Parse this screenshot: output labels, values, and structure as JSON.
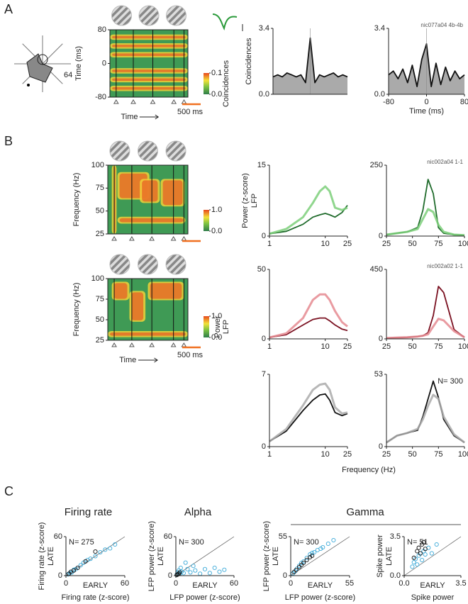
{
  "figure": {
    "panel_labels": [
      "A",
      "B",
      "C"
    ],
    "group_title": "Gamma",
    "freq_label": "Frequency (Hz)"
  },
  "chart_data": [
    {
      "type": "polar",
      "annotation": "64"
    },
    {
      "type": "heatmap",
      "ylabel": "Time (ms)",
      "ylim": [
        -80,
        80
      ],
      "yticks": [
        80,
        0,
        -80
      ],
      "xlabel": "Time",
      "clim": [
        0,
        0.1
      ],
      "cticks": [
        0.1,
        {
          "value": 0,
          "label": "0.0"
        }
      ],
      "colorbar_label": "Coincidences",
      "scale_bar": "500 ms"
    },
    {
      "type": "line",
      "ylabel": "Coincidences",
      "ylim": [
        0,
        3.4
      ],
      "yticks": [
        {
          "value": 0,
          "label": "0.0"
        },
        3.4
      ],
      "xlim": [
        -80,
        80
      ],
      "fill": "#aaaaaa",
      "x": [
        -80,
        -70,
        -60,
        -50,
        -40,
        -30,
        -20,
        -10,
        0,
        10,
        20,
        30,
        40,
        50,
        60,
        70,
        80
      ],
      "series": [
        {
          "color": "#111111",
          "values": [
            0.9,
            1,
            0.9,
            1.1,
            1,
            0.9,
            1,
            0.6,
            2.9,
            0.6,
            1,
            0.9,
            1,
            1.1,
            0.9,
            1,
            0.9
          ]
        }
      ]
    },
    {
      "type": "line",
      "annotation": "nic077a04 4b-4b",
      "xlabel": "Time (ms)",
      "ylim": [
        0,
        3.4
      ],
      "yticks": [
        {
          "value": 0,
          "label": "0.0"
        },
        3.4
      ],
      "xlim": [
        -80,
        80
      ],
      "xticks": [
        -80,
        0,
        80
      ],
      "fill": "#aaaaaa",
      "x": [
        -80,
        -70,
        -60,
        -50,
        -40,
        -30,
        -20,
        -10,
        0,
        10,
        20,
        30,
        40,
        50,
        60,
        70,
        80
      ],
      "series": [
        {
          "color": "#111111",
          "values": [
            1,
            1.2,
            0.8,
            1.3,
            0.6,
            1.5,
            0.4,
            1.8,
            2.6,
            0.4,
            1.6,
            0.5,
            1.4,
            0.7,
            1.2,
            0.8,
            1
          ]
        }
      ]
    },
    {
      "type": "heatmap",
      "ylabel": "Frequency (Hz)",
      "ylim": [
        25,
        100
      ],
      "yticks": [
        100,
        75,
        50,
        25
      ],
      "clim": [
        0,
        1
      ],
      "cticks": [
        {
          "value": 1,
          "label": "1.0"
        },
        {
          "value": 0,
          "label": "0.0"
        }
      ]
    },
    {
      "type": "heatmap",
      "ylabel": "Frequency (Hz)",
      "ylim": [
        25,
        100
      ],
      "yticks": [
        100,
        75,
        50,
        25
      ],
      "xlabel": "Time",
      "clim": [
        0,
        1
      ],
      "cticks": [
        {
          "value": 1,
          "label": "1.0"
        },
        {
          "value": 0,
          "label": "0.0"
        }
      ],
      "colorbar_label": "Power",
      "colorbar_label2": "LFP",
      "scale_bar": "500 ms"
    },
    {
      "type": "line",
      "ylabel": "Power (z-score)",
      "ylabel2": "LFP",
      "ylim": [
        0,
        15
      ],
      "yticks": [
        0,
        15
      ],
      "xlog": true,
      "xlim": [
        1,
        25
      ],
      "xticks": [
        1,
        10,
        25
      ],
      "x": [
        1,
        2,
        4,
        6,
        8,
        10,
        12,
        15,
        20,
        25
      ],
      "series": [
        {
          "color": "#1f6b2b",
          "values": [
            0.5,
            1,
            2.5,
            4,
            4.5,
            4.8,
            4.5,
            4,
            5,
            6.5
          ]
        },
        {
          "color": "#7ccf7a",
          "values": [
            0.5,
            1.5,
            4,
            7,
            9.5,
            10.5,
            9.5,
            6,
            5.5,
            6
          ]
        }
      ]
    },
    {
      "type": "line",
      "annotation": "nic002a04 1-1",
      "ylim": [
        0,
        250
      ],
      "yticks": [
        0,
        250
      ],
      "xlim": [
        25,
        100
      ],
      "xticks": [
        25,
        50,
        75,
        100
      ],
      "x": [
        25,
        35,
        45,
        55,
        60,
        65,
        70,
        75,
        80,
        90,
        100
      ],
      "series": [
        {
          "color": "#1f6b2b",
          "values": [
            5,
            10,
            15,
            30,
            90,
            200,
            150,
            30,
            10,
            5,
            3
          ]
        },
        {
          "color": "#7ccf7a",
          "values": [
            5,
            10,
            15,
            25,
            60,
            95,
            85,
            40,
            15,
            5,
            3
          ]
        }
      ]
    },
    {
      "type": "line",
      "ylim": [
        0,
        50
      ],
      "yticks": [
        0,
        50
      ],
      "xlog": true,
      "xlim": [
        1,
        25
      ],
      "xticks": [
        1,
        10,
        25
      ],
      "x": [
        1,
        2,
        4,
        6,
        8,
        10,
        12,
        15,
        20,
        25
      ],
      "series": [
        {
          "color": "#7a1020",
          "values": [
            1,
            3,
            10,
            14,
            15,
            15,
            13,
            10,
            7,
            6
          ]
        },
        {
          "color": "#e58a90",
          "values": [
            1,
            4,
            15,
            28,
            32,
            32,
            28,
            20,
            12,
            9
          ]
        }
      ]
    },
    {
      "type": "line",
      "annotation": "nic002a02 1-1",
      "ylim": [
        0,
        450
      ],
      "yticks": [
        0,
        450
      ],
      "xlim": [
        25,
        100
      ],
      "xticks": [
        25,
        50,
        75,
        100
      ],
      "x": [
        25,
        35,
        45,
        55,
        60,
        65,
        70,
        75,
        80,
        90,
        100
      ],
      "series": [
        {
          "color": "#7a1020",
          "values": [
            5,
            8,
            10,
            15,
            20,
            40,
            150,
            340,
            300,
            60,
            10
          ]
        },
        {
          "color": "#e58a90",
          "values": [
            5,
            8,
            10,
            15,
            20,
            30,
            80,
            130,
            120,
            50,
            10
          ]
        }
      ]
    },
    {
      "type": "line",
      "ylim": [
        0,
        7
      ],
      "yticks": [
        0,
        7
      ],
      "xlog": true,
      "xlim": [
        1,
        25
      ],
      "xticks": [
        1,
        10,
        25
      ],
      "x": [
        1,
        2,
        4,
        6,
        8,
        10,
        12,
        15,
        20,
        25
      ],
      "series": [
        {
          "color": "#111111",
          "values": [
            0.5,
            1.5,
            3.5,
            4.5,
            5,
            5.1,
            4.5,
            3.3,
            3,
            3.2
          ]
        },
        {
          "color": "#aaaaaa",
          "values": [
            0.5,
            1.7,
            4,
            5.5,
            6,
            6.1,
            5.5,
            3.8,
            3.2,
            3.3
          ]
        }
      ]
    },
    {
      "type": "line",
      "annotation": "N= 300",
      "ylim": [
        0,
        53
      ],
      "yticks": [
        0,
        53
      ],
      "xlim": [
        25,
        100
      ],
      "xticks": [
        25,
        50,
        75,
        100
      ],
      "x": [
        25,
        35,
        45,
        55,
        60,
        65,
        70,
        75,
        80,
        90,
        100
      ],
      "series": [
        {
          "color": "#111111",
          "values": [
            3,
            8,
            10,
            12,
            22,
            35,
            48,
            36,
            20,
            8,
            3
          ]
        },
        {
          "color": "#aaaaaa",
          "values": [
            3,
            8,
            10,
            13,
            20,
            30,
            38,
            35,
            22,
            9,
            3
          ]
        }
      ]
    },
    {
      "type": "scatter",
      "title": "Firing rate",
      "annotation": "N= 275",
      "ylabel": "Firing rate (z-score)",
      "ylabel2": "LATE",
      "xlabel": "Firing rate (z-score)",
      "xlabel2": "EARLY",
      "xlim": [
        0,
        60
      ],
      "ylim": [
        0,
        60
      ],
      "xticks": [
        0,
        60
      ],
      "yticks": [
        0,
        60
      ],
      "series": [
        {
          "color": "#3aa9d8",
          "x": [
            2,
            4,
            6,
            8,
            10,
            12,
            15,
            18,
            22,
            25,
            30,
            35,
            40,
            45,
            50
          ],
          "values": [
            2,
            4,
            5,
            9,
            10,
            12,
            16,
            20,
            24,
            26,
            30,
            36,
            40,
            42,
            48
          ]
        },
        {
          "color": "#111111",
          "x": [
            3,
            5,
            8,
            12,
            20,
            30
          ],
          "values": [
            3,
            6,
            8,
            12,
            22,
            37
          ]
        }
      ]
    },
    {
      "type": "scatter",
      "title": "Alpha",
      "annotation": "N= 300",
      "ylabel": "LFP power (z-score)",
      "ylabel2": "LATE",
      "xlabel": "LFP power (z-score)",
      "xlabel2": "EARLY",
      "xlim": [
        0,
        60
      ],
      "ylim": [
        0,
        60
      ],
      "xticks": [
        0,
        60
      ],
      "yticks": [
        0,
        60
      ],
      "series": [
        {
          "color": "#3aa9d8",
          "x": [
            1,
            2,
            3,
            4,
            5,
            6,
            8,
            10,
            12,
            15,
            18,
            20,
            25,
            30,
            35,
            40,
            45,
            50
          ],
          "values": [
            2,
            5,
            8,
            3,
            12,
            6,
            4,
            20,
            10,
            5,
            15,
            8,
            3,
            10,
            4,
            12,
            6,
            9
          ]
        },
        {
          "color": "#111111",
          "x": [
            1,
            2,
            3,
            4
          ],
          "values": [
            1,
            2,
            3,
            5
          ]
        }
      ]
    },
    {
      "type": "scatter",
      "annotation": "N= 300",
      "ylabel": "LFP power (z-score)",
      "ylabel2": "LATE",
      "xlabel": "LFP power (z-score)",
      "xlabel2": "EARLY",
      "xlim": [
        0,
        55
      ],
      "ylim": [
        0,
        55
      ],
      "xticks": [
        0,
        55
      ],
      "yticks": [
        0,
        55
      ],
      "series": [
        {
          "color": "#3aa9d8",
          "x": [
            2,
            4,
            6,
            8,
            10,
            12,
            15,
            18,
            20,
            22,
            25,
            28,
            30,
            35,
            40
          ],
          "values": [
            3,
            6,
            10,
            14,
            18,
            20,
            25,
            30,
            32,
            33,
            36,
            38,
            40,
            45,
            50
          ]
        },
        {
          "color": "#111111",
          "x": [
            3,
            5,
            8,
            10,
            12,
            15,
            18,
            20
          ],
          "values": [
            5,
            8,
            12,
            15,
            18,
            22,
            26,
            28
          ]
        }
      ]
    },
    {
      "type": "scatter",
      "annotation": "N= 51",
      "ylabel": "Spike power",
      "ylabel2": "LATE",
      "xlabel": "Spike power",
      "xlabel2": "EARLY",
      "xlim": [
        0,
        3.5
      ],
      "ylim": [
        0,
        3.5
      ],
      "xticks": [
        {
          "value": 0,
          "label": "0.0"
        },
        3.5
      ],
      "yticks": [
        {
          "value": 0,
          "label": "0.0"
        },
        3.5
      ],
      "series": [
        {
          "color": "#3aa9d8",
          "x": [
            0.5,
            0.6,
            0.7,
            0.8,
            0.9,
            1,
            1.1,
            1.2,
            1.3,
            1.5,
            1.7,
            2
          ],
          "values": [
            0.8,
            1.2,
            1.5,
            1,
            1.8,
            2,
            1.4,
            2.2,
            1.9,
            2.5,
            2,
            2.8
          ]
        },
        {
          "color": "#111111",
          "x": [
            0.6,
            0.8,
            0.9,
            1,
            1.1,
            1.2,
            1.3
          ],
          "values": [
            1.6,
            2.2,
            2.5,
            2,
            2.8,
            3,
            2.4
          ]
        }
      ]
    }
  ]
}
